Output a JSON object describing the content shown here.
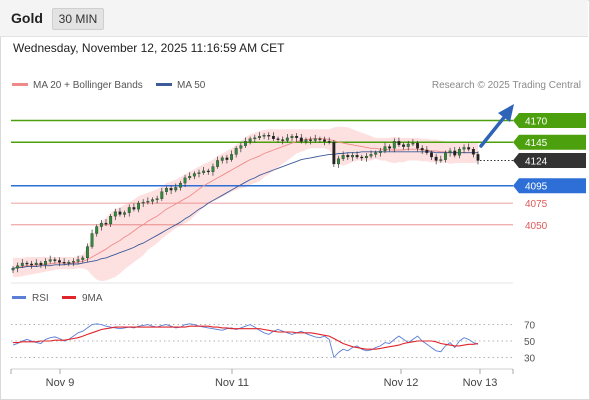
{
  "header": {
    "symbol": "Gold",
    "timeframe": "30 MIN",
    "datetime": "Wednesday, November 12, 2025 11:16:59 AM CET"
  },
  "legend": {
    "bollinger_label": "MA 20 + Bollinger Bands",
    "ma50_label": "MA 50",
    "credit": "Research © 2025 Trading Central"
  },
  "rsi_legend": {
    "rsi_label": "RSI",
    "ma_label": "9MA"
  },
  "colors": {
    "bollinger": "#f08a8a",
    "band_fill": "#fde1e1",
    "ma50": "#3d5a99",
    "resistance": "#4ca00e",
    "support_blue": "#2d6fd6",
    "support_red": "#e05a5a",
    "current": "#333333",
    "arrow": "#2f63b8",
    "rsi": "#5b7fd6",
    "rsi_ma": "#e0252a"
  },
  "chart_data": [
    {
      "type": "candlestick",
      "x_labels": [
        "Nov 9",
        "Nov 11",
        "Nov 12",
        "Nov 13"
      ],
      "y_range": [
        3990,
        4180
      ],
      "current_price": 4124,
      "levels": [
        {
          "value": 4170,
          "label": "4170",
          "kind": "resistance"
        },
        {
          "value": 4145,
          "label": "4145",
          "kind": "resistance"
        },
        {
          "value": 4124,
          "label": "4124",
          "kind": "current"
        },
        {
          "value": 4095,
          "label": "4095",
          "kind": "pivot"
        },
        {
          "value": 4075,
          "label": "4075",
          "kind": "support"
        },
        {
          "value": 4050,
          "label": "4050",
          "kind": "support"
        }
      ],
      "close_series": [
        4000,
        4003,
        4006,
        4005,
        4004,
        4006,
        4004,
        4008,
        4010,
        4009,
        4007,
        4006,
        4007,
        4008,
        4010,
        4012,
        4025,
        4040,
        4048,
        4052,
        4051,
        4060,
        4065,
        4062,
        4064,
        4070,
        4068,
        4075,
        4076,
        4077,
        4079,
        4080,
        4088,
        4092,
        4090,
        4093,
        4098,
        4104,
        4106,
        4109,
        4110,
        4112,
        4111,
        4117,
        4124,
        4127,
        4125,
        4131,
        4138,
        4141,
        4146,
        4149,
        4150,
        4152,
        4153,
        4152,
        4149,
        4148,
        4147,
        4150,
        4152,
        4150,
        4146,
        4148,
        4147,
        4149,
        4148,
        4146,
        4145,
        4120,
        4126,
        4130,
        4128,
        4130,
        4128,
        4127,
        4129,
        4131,
        4133,
        4135,
        4140,
        4138,
        4146,
        4142,
        4140,
        4143,
        4144,
        4138,
        4136,
        4133,
        4128,
        4124,
        4125,
        4133,
        4135,
        4130,
        4137,
        4139,
        4137,
        4131,
        4124
      ],
      "ma20": [
        4000,
        4001,
        4002,
        4003,
        4003,
        4004,
        4004,
        4005,
        4005,
        4006,
        4006,
        4006,
        4006,
        4006,
        4007,
        4008,
        4010,
        4013,
        4016,
        4019,
        4022,
        4026,
        4029,
        4032,
        4036,
        4039,
        4043,
        4047,
        4050,
        4054,
        4057,
        4060,
        4064,
        4068,
        4071,
        4074,
        4077,
        4080,
        4083,
        4087,
        4091,
        4095,
        4098,
        4101,
        4104,
        4107,
        4110,
        4113,
        4116,
        4119,
        4122,
        4125,
        4127,
        4129,
        4132,
        4134,
        4136,
        4138,
        4140,
        4142,
        4144,
        4146,
        4147,
        4148,
        4149,
        4149,
        4149,
        4149,
        4148,
        4147,
        4145,
        4144,
        4143,
        4142,
        4141,
        4140,
        4139,
        4138,
        4138,
        4137,
        4137,
        4136,
        4136,
        4136,
        4136,
        4137,
        4137,
        4137,
        4136,
        4136,
        4135,
        4135,
        4134,
        4134,
        4133,
        4133,
        4133,
        4133,
        4133,
        4133,
        4133
      ],
      "bb_upper": [
        4012,
        4012,
        4012,
        4013,
        4013,
        4013,
        4013,
        4013,
        4013,
        4013,
        4013,
        4013,
        4013,
        4013,
        4014,
        4016,
        4024,
        4036,
        4046,
        4053,
        4058,
        4064,
        4068,
        4070,
        4073,
        4076,
        4079,
        4083,
        4085,
        4087,
        4089,
        4091,
        4094,
        4098,
        4100,
        4102,
        4105,
        4108,
        4111,
        4114,
        4117,
        4120,
        4122,
        4125,
        4129,
        4132,
        4135,
        4138,
        4142,
        4146,
        4151,
        4154,
        4156,
        4158,
        4159,
        4160,
        4160,
        4160,
        4160,
        4160,
        4160,
        4160,
        4160,
        4160,
        4160,
        4160,
        4160,
        4160,
        4160,
        4162,
        4163,
        4163,
        4162,
        4160,
        4158,
        4156,
        4154,
        4152,
        4150,
        4150,
        4150,
        4150,
        4151,
        4150,
        4150,
        4150,
        4150,
        4150,
        4149,
        4149,
        4148,
        4148,
        4147,
        4146,
        4146,
        4145,
        4145,
        4145,
        4145,
        4145,
        4145
      ],
      "bb_lower": [
        3990,
        3990,
        3991,
        3992,
        3993,
        3994,
        3995,
        3996,
        3997,
        3998,
        3999,
        3999,
        3999,
        3999,
        4000,
        4000,
        3998,
        3992,
        3987,
        3985,
        3986,
        3988,
        3990,
        3994,
        3999,
        4003,
        4007,
        4011,
        4015,
        4021,
        4025,
        4029,
        4034,
        4038,
        4042,
        4046,
        4049,
        4052,
        4055,
        4060,
        4065,
        4070,
        4074,
        4077,
        4079,
        4082,
        4085,
        4088,
        4090,
        4092,
        4093,
        4096,
        4098,
        4100,
        4105,
        4108,
        4112,
        4116,
        4120,
        4124,
        4128,
        4132,
        4134,
        4136,
        4138,
        4138,
        4138,
        4138,
        4136,
        4126,
        4120,
        4118,
        4120,
        4122,
        4124,
        4124,
        4124,
        4124,
        4126,
        4124,
        4124,
        4122,
        4121,
        4122,
        4122,
        4124,
        4124,
        4124,
        4123,
        4123,
        4122,
        4122,
        4121,
        4122,
        4120,
        4121,
        4121,
        4121,
        4121,
        4121,
        4121
      ],
      "ma50": [
        4000,
        4001,
        4001,
        4002,
        4002,
        4002,
        4003,
        4003,
        4003,
        4004,
        4004,
        4004,
        4005,
        4005,
        4005,
        4006,
        4007,
        4008,
        4009,
        4011,
        4012,
        4014,
        4016,
        4018,
        4020,
        4022,
        4024,
        4027,
        4029,
        4032,
        4035,
        4038,
        4041,
        4044,
        4047,
        4050,
        4053,
        4057,
        4060,
        4064,
        4068,
        4071,
        4075,
        4078,
        4081,
        4084,
        4087,
        4090,
        4093,
        4096,
        4099,
        4102,
        4104,
        4107,
        4109,
        4111,
        4113,
        4115,
        4117,
        4119,
        4121,
        4123,
        4125,
        4126,
        4127,
        4128,
        4129,
        4130,
        4131,
        4131,
        4132,
        4132,
        4133,
        4133,
        4133,
        4134,
        4134,
        4134,
        4134,
        4134,
        4134,
        4134,
        4134,
        4134,
        4134,
        4134,
        4134,
        4134,
        4134,
        4134,
        4134,
        4133,
        4133,
        4133,
        4133,
        4133,
        4133,
        4133,
        4133,
        4133,
        4133
      ]
    },
    {
      "type": "line",
      "name": "RSI",
      "y_ticks": [
        70,
        50,
        30
      ],
      "y_range": [
        20,
        80
      ],
      "rsi": [
        45,
        47,
        50,
        52,
        50,
        48,
        47,
        52,
        54,
        55,
        53,
        50,
        52,
        56,
        60,
        62,
        66,
        70,
        71,
        70,
        68,
        67,
        66,
        65,
        66,
        67,
        66,
        68,
        69,
        70,
        68,
        67,
        69,
        70,
        68,
        66,
        67,
        70,
        71,
        70,
        68,
        67,
        66,
        65,
        64,
        63,
        65,
        66,
        64,
        66,
        68,
        70,
        67,
        63,
        60,
        58,
        62,
        64,
        62,
        60,
        58,
        60,
        62,
        59,
        57,
        55,
        54,
        56,
        52,
        30,
        36,
        40,
        38,
        42,
        44,
        40,
        38,
        39,
        42,
        44,
        48,
        47,
        52,
        56,
        52,
        48,
        52,
        56,
        50,
        46,
        42,
        38,
        37,
        44,
        48,
        42,
        50,
        54,
        52,
        48,
        46
      ],
      "rsi_ma": [
        48,
        48,
        49,
        49,
        49,
        49,
        50,
        50,
        50,
        51,
        51,
        51,
        52,
        53,
        54,
        56,
        58,
        60,
        62,
        64,
        65,
        66,
        67,
        67,
        67,
        67,
        67,
        67,
        67,
        67,
        67,
        67,
        67,
        67,
        67,
        67,
        67,
        67,
        68,
        68,
        68,
        68,
        68,
        67,
        67,
        66,
        66,
        65,
        65,
        65,
        65,
        65,
        65,
        65,
        64,
        63,
        62,
        61,
        61,
        61,
        61,
        60,
        60,
        60,
        60,
        59,
        58,
        57,
        56,
        53,
        50,
        47,
        45,
        43,
        42,
        41,
        40,
        40,
        40,
        41,
        42,
        43,
        44,
        45,
        47,
        48,
        49,
        50,
        50,
        50,
        50,
        49,
        47,
        46,
        45,
        44,
        44,
        45,
        46,
        46,
        47
      ]
    }
  ]
}
